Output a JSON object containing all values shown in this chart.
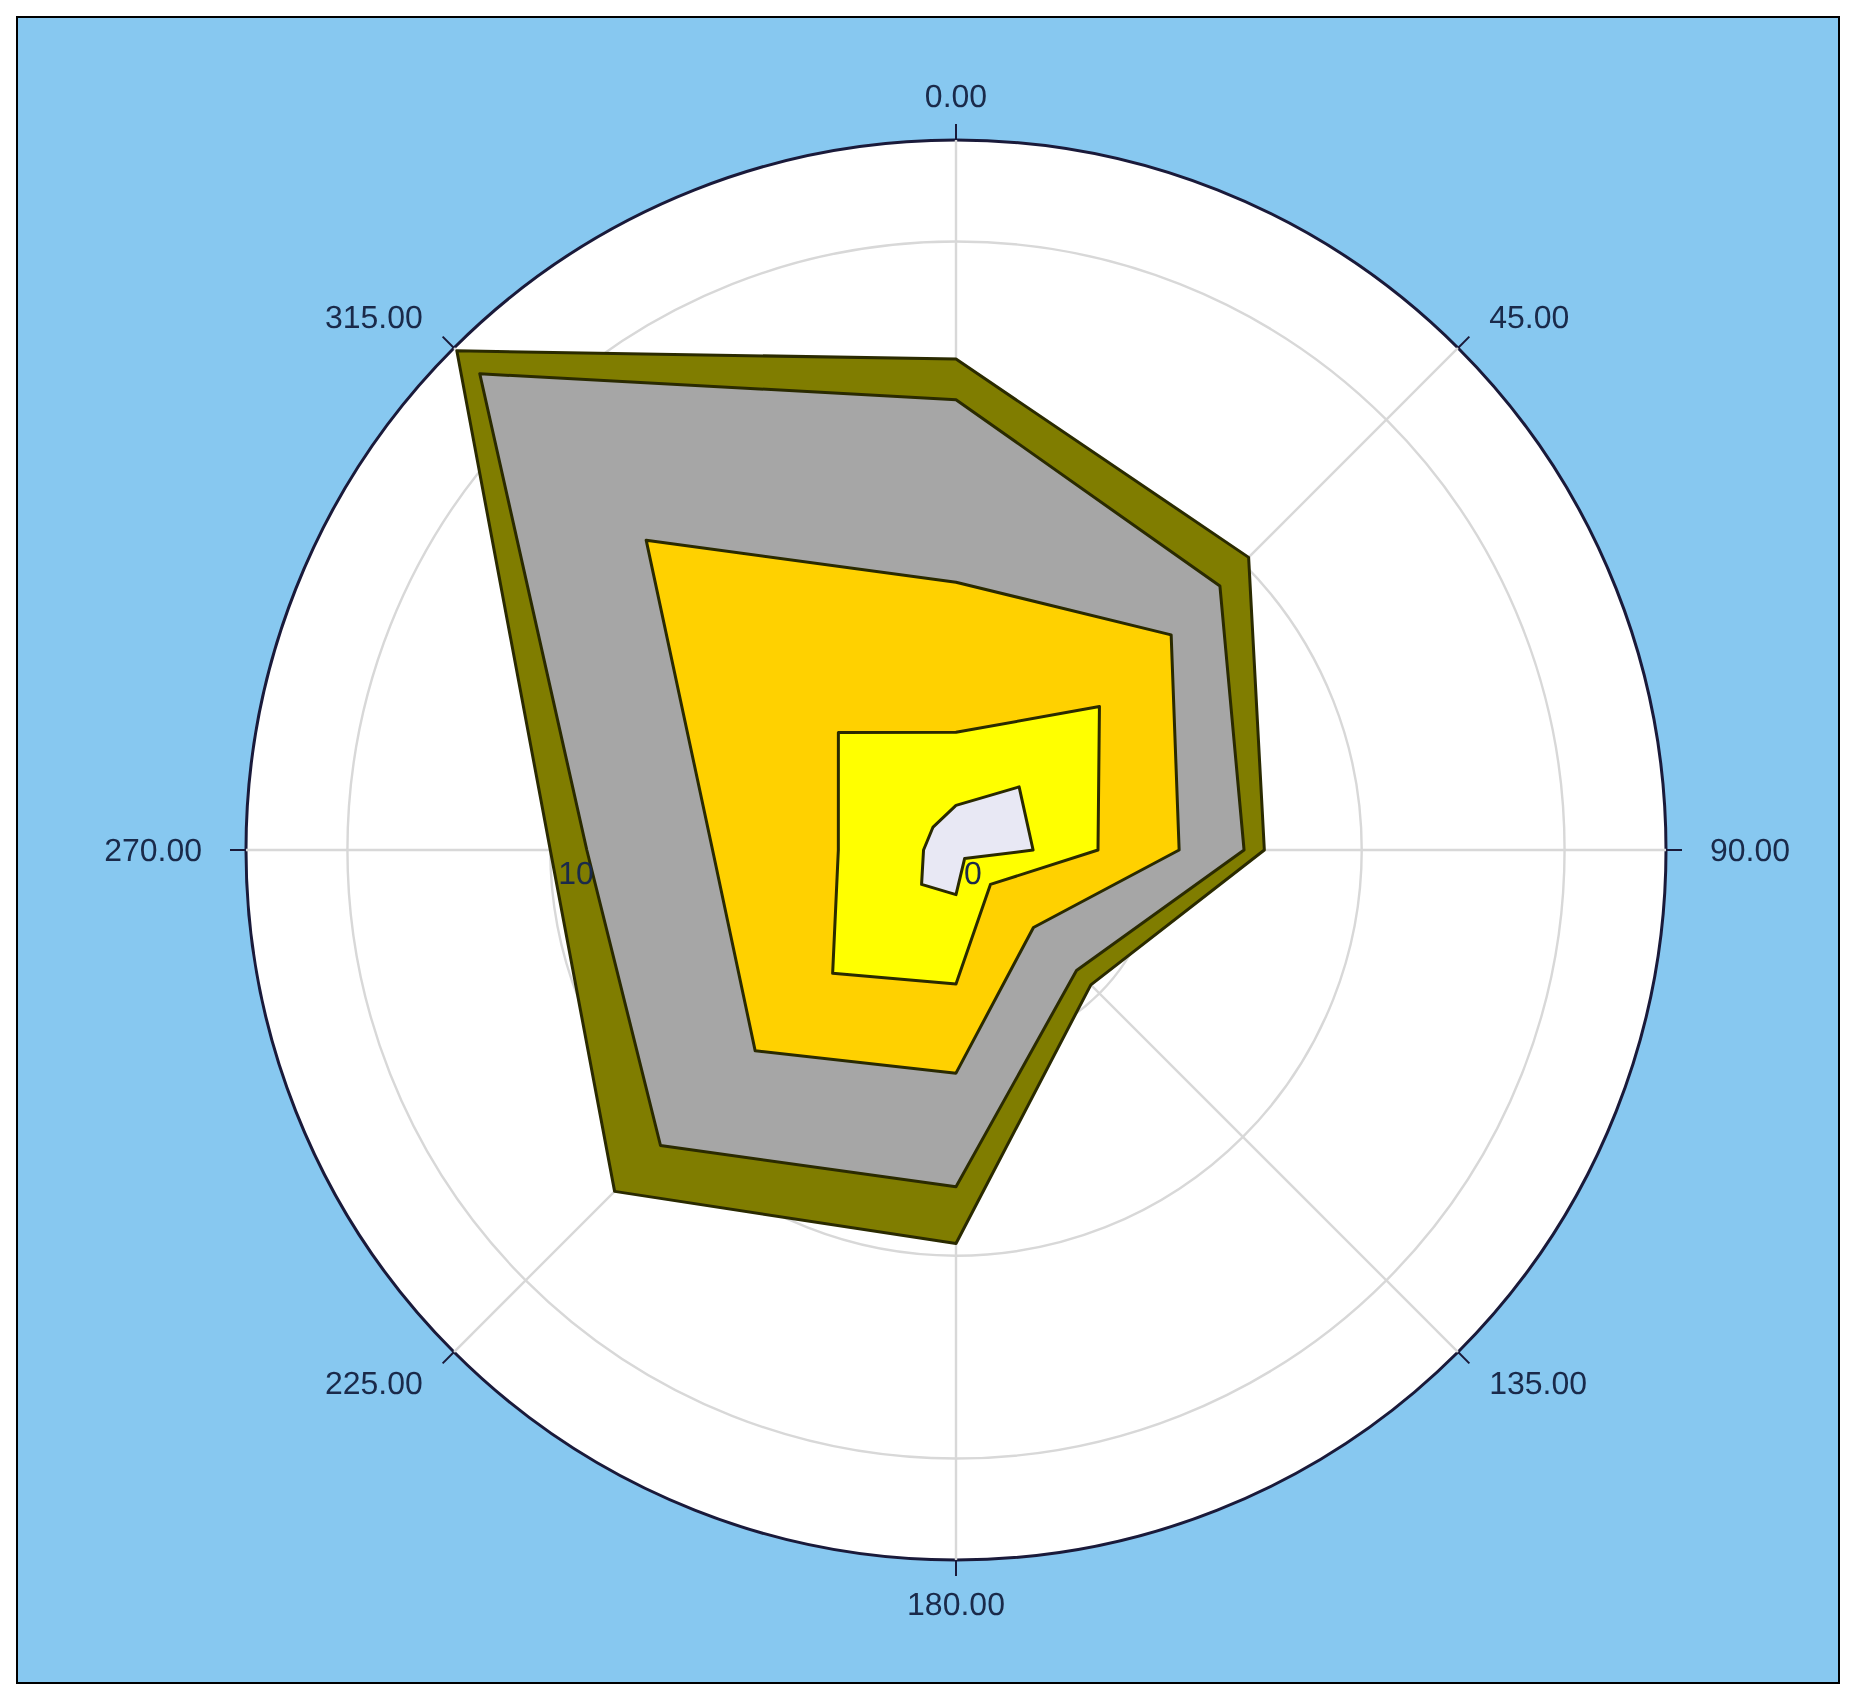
{
  "chart_data": {
    "type": "radar",
    "categories": [
      "0.00",
      "45.00",
      "90.00",
      "135.00",
      "180.00",
      "225.00",
      "270.00",
      "315.00"
    ],
    "series": [
      {
        "color": "#807d00",
        "values": [
          12.1,
          10.2,
          7.6,
          4.7,
          9.7,
          11.9,
          10.0,
          17.4
        ]
      },
      {
        "color": "#a6a6a6",
        "values": [
          11.1,
          9.2,
          7.1,
          4.2,
          8.3,
          10.3,
          9.1,
          16.6
        ]
      },
      {
        "color": "#ffd100",
        "values": [
          6.6,
          7.5,
          5.5,
          2.7,
          5.5,
          7.0,
          6.0,
          10.8
        ]
      },
      {
        "color": "#ffff00",
        "values": [
          2.9,
          5.0,
          3.5,
          1.2,
          3.3,
          4.3,
          2.9,
          4.1
        ]
      },
      {
        "color": "#e8e8f4",
        "values": [
          1.1,
          2.2,
          1.9,
          0.3,
          1.1,
          1.2,
          0.8,
          0.8
        ]
      }
    ],
    "ylim": [
      0,
      17.5
    ],
    "yticks": [
      0,
      10
    ],
    "grid": true
  }
}
